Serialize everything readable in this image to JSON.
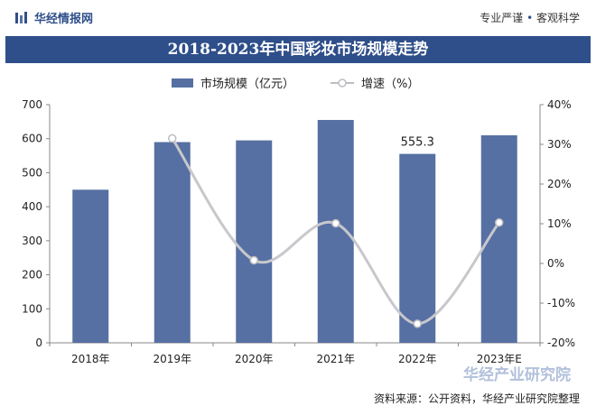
{
  "header": {
    "logo_text": "华经情报网",
    "slogan_left": "专业严谨",
    "slogan_sep": "•",
    "slogan_right": "客观科学"
  },
  "title": "2018-2023年中国彩妆市场规模走势",
  "legend": {
    "bar_label": "市场规模（亿元）",
    "line_label": "增速（%）"
  },
  "watermark": "华经产业研究院",
  "source": "资料来源：公开资料，华经产业研究院整理",
  "colors": {
    "bar": "#5770a3",
    "line": "#c8c8cc",
    "title_bg": "#2f4f8a"
  },
  "chart_data": {
    "type": "bar",
    "title": "2018-2023年中国彩妆市场规模走势",
    "categories": [
      "2018年",
      "2019年",
      "2020年",
      "2021年",
      "2022年",
      "2023年E"
    ],
    "series": [
      {
        "name": "市场规模（亿元）",
        "type": "bar",
        "axis": "left",
        "values": [
          450,
          590,
          595,
          655,
          555.3,
          610
        ]
      },
      {
        "name": "增速（%）",
        "type": "line",
        "axis": "right",
        "values": [
          null,
          31.5,
          0.8,
          10.1,
          -15.2,
          10.3
        ]
      }
    ],
    "data_labels": [
      {
        "category": "2022年",
        "text": "555.3"
      }
    ],
    "y_left": {
      "min": 0,
      "max": 700,
      "ticks": [
        "0",
        "100",
        "200",
        "300",
        "400",
        "500",
        "600",
        "700"
      ]
    },
    "y_right": {
      "min": -20,
      "max": 40,
      "ticks": [
        "-20%",
        "-10%",
        "0%",
        "10%",
        "20%",
        "30%",
        "40%"
      ]
    },
    "legend_position": "top",
    "grid": false
  }
}
